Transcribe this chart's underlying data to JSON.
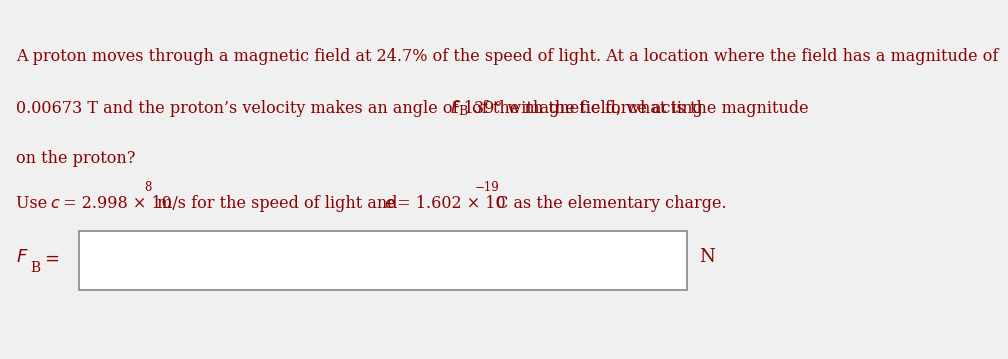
{
  "background_color": "#f0f0f0",
  "content_bg": "#ffffff",
  "text_color": "#8B0000",
  "line1": "A proton moves through a magnetic field at 24.7% of the speed of light. At a location where the field has a magnitude of",
  "line2": "0.00673 T and the proton’s velocity makes an angle of 139° with the field, what is the magnitude ",
  "line2b": " of the magnetic force acting",
  "line3": "on the proton?",
  "line4a": "Use ",
  "line4c": " = 2.998 × 10",
  "line4d": "8",
  "line4e": " m/s for the speed of light and ",
  "line4g": " = 1.602 × 10",
  "line4h": "−19",
  "line4i": " C as the elementary charge.",
  "unit": "N",
  "font_size_main": 11.5,
  "font_size_label": 13
}
